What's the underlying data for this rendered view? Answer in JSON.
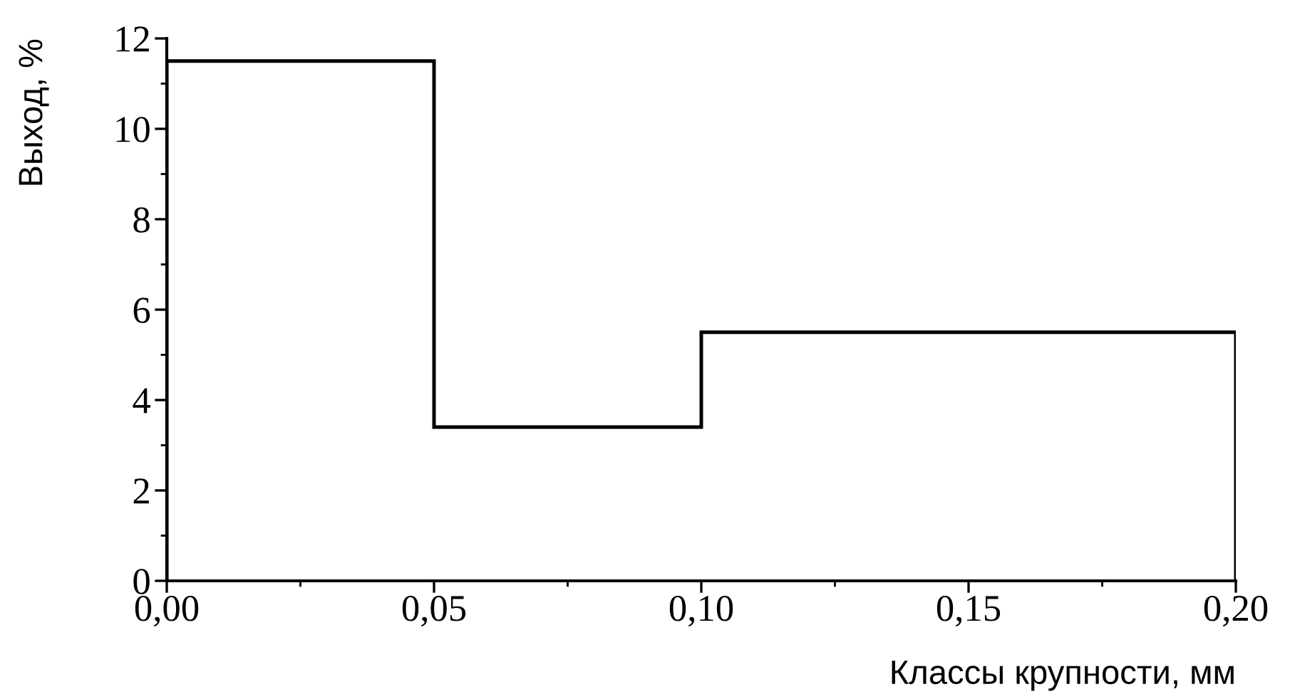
{
  "chart_data": {
    "type": "histogram",
    "xlabel": "Классы крупности, мм",
    "ylabel": "Выход, %",
    "bins": [
      0,
      0.05,
      0.1,
      0.2
    ],
    "values": [
      11.5,
      3.4,
      5.5
    ],
    "color": "#000000",
    "xlim": [
      0,
      0.2
    ],
    "ylim": [
      0,
      12
    ],
    "xticks": [
      {
        "value": 0,
        "label": "0,00"
      },
      {
        "value": 0.05,
        "label": "0,05"
      },
      {
        "value": 0.1,
        "label": "0,10"
      },
      {
        "value": 0.15,
        "label": "0,15"
      },
      {
        "value": 0.2,
        "label": "0,20"
      }
    ],
    "yticks": [
      0,
      2,
      4,
      6,
      8,
      10,
      12
    ],
    "grid": false,
    "legend": false
  }
}
